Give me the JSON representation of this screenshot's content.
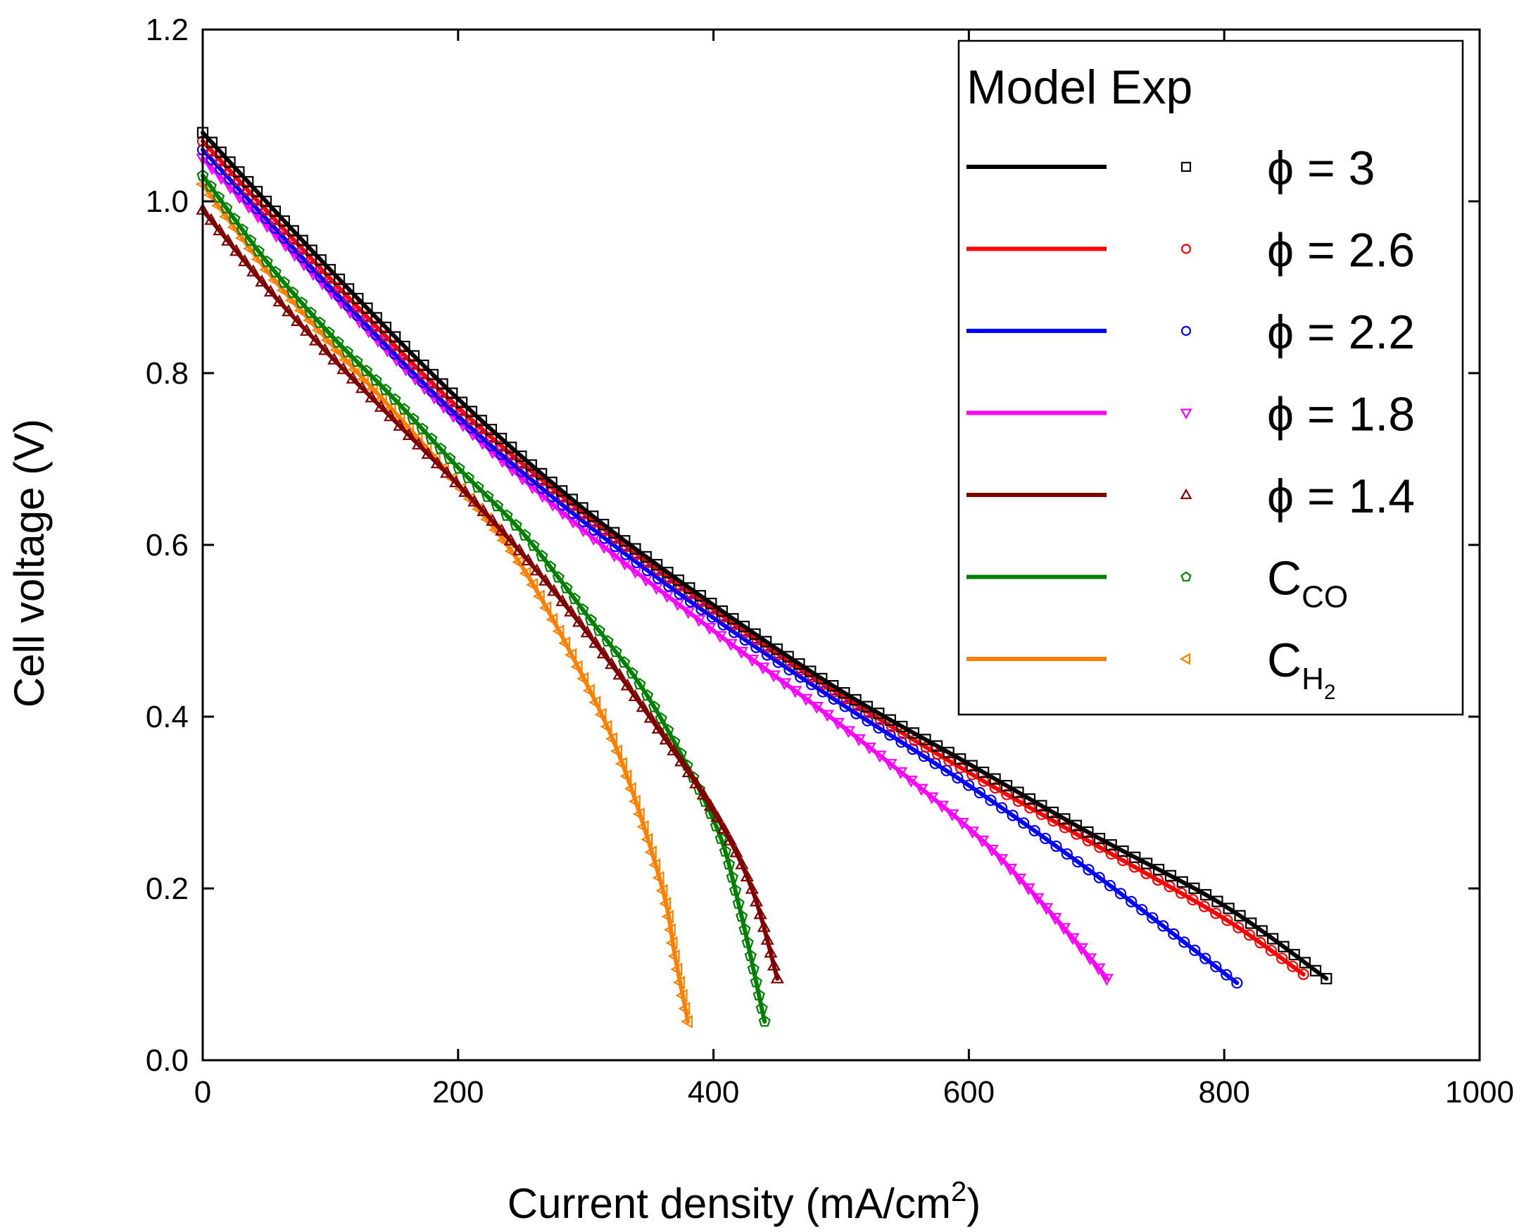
{
  "chart_data": {
    "type": "line",
    "xlabel": "Current density (mA/cm²)",
    "xlabel_parts": {
      "main": "Current density (mA/cm",
      "sup": "2",
      "close": ")"
    },
    "ylabel": "Cell voltage (V)",
    "xlim": [
      0,
      1000
    ],
    "ylim": [
      0.0,
      1.2
    ],
    "xticks": [
      0,
      200,
      400,
      600,
      800,
      1000
    ],
    "yticks": [
      0.0,
      0.2,
      0.4,
      0.6,
      0.8,
      1.0,
      1.2
    ],
    "xtick_labels": [
      "0",
      "200",
      "400",
      "600",
      "800",
      "1000"
    ],
    "ytick_labels": [
      "0.0",
      "0.2",
      "0.4",
      "0.6",
      "0.8",
      "1.0",
      "1.2"
    ],
    "legend": {
      "position": "top-right",
      "header": "Model Exp",
      "entries": [
        {
          "label": "ϕ = 3"
        },
        {
          "label": "ϕ = 2.6"
        },
        {
          "label": "ϕ = 2.2"
        },
        {
          "label": "ϕ = 1.8"
        },
        {
          "label": "ϕ = 1.4"
        },
        {
          "label": "C",
          "sub": "CO"
        },
        {
          "label": "C",
          "sub": "H",
          "subsub": "2"
        }
      ]
    },
    "series": [
      {
        "name": "ϕ = 3",
        "color": "#000000",
        "marker": "square",
        "x": [
          0,
          100,
          200,
          300,
          400,
          500,
          600,
          700,
          800,
          880
        ],
        "y": [
          1.08,
          0.92,
          0.77,
          0.64,
          0.53,
          0.43,
          0.345,
          0.26,
          0.18,
          0.095
        ]
      },
      {
        "name": "ϕ = 2.6",
        "color": "#ff0000",
        "marker": "circle",
        "x": [
          0,
          100,
          200,
          300,
          400,
          500,
          600,
          700,
          800,
          862
        ],
        "y": [
          1.07,
          0.91,
          0.76,
          0.635,
          0.525,
          0.425,
          0.335,
          0.25,
          0.165,
          0.1
        ]
      },
      {
        "name": "ϕ = 2.2",
        "color": "#0000ff",
        "marker": "circle",
        "x": [
          0,
          100,
          200,
          300,
          400,
          500,
          600,
          700,
          810
        ],
        "y": [
          1.06,
          0.9,
          0.75,
          0.625,
          0.515,
          0.415,
          0.32,
          0.215,
          0.09
        ]
      },
      {
        "name": "ϕ = 1.8",
        "color": "#ff00ff",
        "marker": "triangle-down",
        "x": [
          0,
          100,
          200,
          300,
          400,
          500,
          600,
          650,
          700,
          708
        ],
        "y": [
          1.05,
          0.895,
          0.745,
          0.615,
          0.5,
          0.39,
          0.27,
          0.195,
          0.11,
          0.095
        ]
      },
      {
        "name": "ϕ = 1.4",
        "color": "#800000",
        "marker": "triangle-up",
        "x": [
          0,
          50,
          100,
          150,
          200,
          250,
          300,
          350,
          400,
          430,
          450
        ],
        "y": [
          0.99,
          0.9,
          0.82,
          0.745,
          0.67,
          0.59,
          0.5,
          0.4,
          0.29,
          0.2,
          0.095
        ]
      },
      {
        "name": "C_CO",
        "color": "#008000",
        "marker": "pentagon",
        "x": [
          0,
          50,
          100,
          150,
          200,
          250,
          300,
          350,
          400,
          420,
          440
        ],
        "y": [
          1.03,
          0.93,
          0.845,
          0.77,
          0.69,
          0.615,
          0.52,
          0.42,
          0.28,
          0.18,
          0.045
        ]
      },
      {
        "name": "C_H2",
        "color": "#ff8000",
        "marker": "triangle-left",
        "x": [
          0,
          50,
          100,
          150,
          200,
          250,
          300,
          330,
          360,
          370,
          380
        ],
        "y": [
          1.02,
          0.92,
          0.835,
          0.755,
          0.67,
          0.575,
          0.44,
          0.34,
          0.2,
          0.12,
          0.045
        ]
      }
    ]
  }
}
